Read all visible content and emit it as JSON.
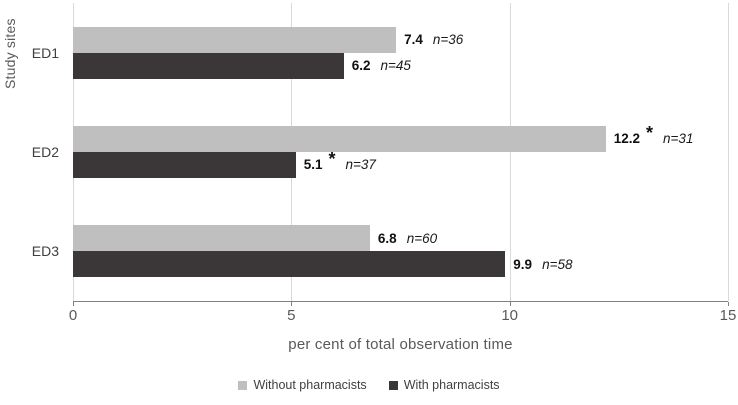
{
  "chart_data": {
    "type": "bar",
    "orientation": "horizontal",
    "title": "",
    "xlabel": "per cent of total observation time",
    "ylabel": "Study sites",
    "categories": [
      "ED1",
      "ED2",
      "ED3"
    ],
    "xlim": [
      0,
      15
    ],
    "xticks": [
      0,
      5,
      10,
      15
    ],
    "grid": "vertical-gridlines-on",
    "legend_position": "bottom-center",
    "bar_label_format": "value bold, optional raised asterisk, italic n-count",
    "series": [
      {
        "name": "Without pharmacists",
        "color": "#bfbfbf",
        "values": [
          7.4,
          12.2,
          6.8
        ],
        "value_labels": [
          "7.4",
          "12.2",
          "6.8"
        ],
        "n": [
          36,
          31,
          60
        ],
        "n_labels": [
          "n=36",
          "n=31",
          "n=60"
        ],
        "significant": [
          false,
          true,
          false
        ]
      },
      {
        "name": "With pharmacists",
        "color": "#3b3738",
        "values": [
          6.2,
          5.1,
          9.9
        ],
        "value_labels": [
          "6.2",
          "5.1",
          "9.9"
        ],
        "n": [
          45,
          37,
          58
        ],
        "n_labels": [
          "n=45",
          "n=37",
          "n=58"
        ],
        "significant": [
          false,
          true,
          false
        ]
      }
    ],
    "asterisk_symbol": "*",
    "axis_color": "#808080",
    "gridline_color": "#d9d9d9",
    "text_color": "#595959"
  }
}
